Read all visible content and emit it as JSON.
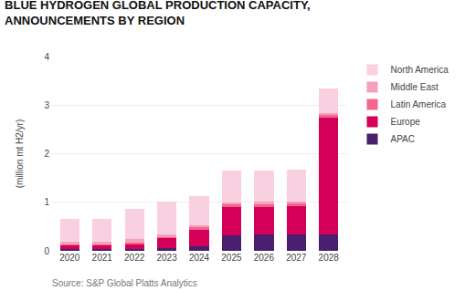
{
  "chart_data": {
    "type": "bar",
    "stacked": true,
    "title": "BLUE HYDROGEN GLOBAL PRODUCTION CAPACITY,",
    "subtitle": "ANNOUNCEMENTS BY REGION",
    "ylabel": "(million mt H2/yr)",
    "annotations": [
      "Source: S&P Global Platts Analytics"
    ],
    "x": [
      2020,
      2021,
      2022,
      2023,
      2024,
      2025,
      2026,
      2027,
      2028
    ],
    "xlim": [
      2019.4,
      2028.6
    ],
    "xticks": [
      2020,
      2021,
      2022,
      2023,
      2024,
      2025,
      2026,
      2027,
      2028
    ],
    "ylim": [
      0,
      4
    ],
    "yticks": [
      0,
      1,
      2,
      3,
      4
    ],
    "grid": true,
    "legend": "upper right",
    "series": [
      {
        "name": "APAC",
        "color": "#4b1f6f",
        "values": [
          0.04,
          0.04,
          0.04,
          0.05,
          0.1,
          0.32,
          0.33,
          0.34,
          0.34
        ]
      },
      {
        "name": "Europe",
        "color": "#d4005a",
        "values": [
          0.08,
          0.08,
          0.1,
          0.22,
          0.34,
          0.58,
          0.58,
          0.58,
          2.4
        ]
      },
      {
        "name": "Latin America",
        "color": "#f2668b",
        "values": [
          0.02,
          0.02,
          0.02,
          0.02,
          0.04,
          0.05,
          0.05,
          0.05,
          0.05
        ]
      },
      {
        "name": "Middle East",
        "color": "#f5a0bc",
        "values": [
          0.04,
          0.04,
          0.08,
          0.05,
          0.05,
          0.05,
          0.05,
          0.05,
          0.05
        ]
      },
      {
        "name": "North America",
        "color": "#f9d0e0",
        "values": [
          0.48,
          0.48,
          0.62,
          0.67,
          0.6,
          0.65,
          0.65,
          0.65,
          0.5
        ]
      }
    ]
  }
}
